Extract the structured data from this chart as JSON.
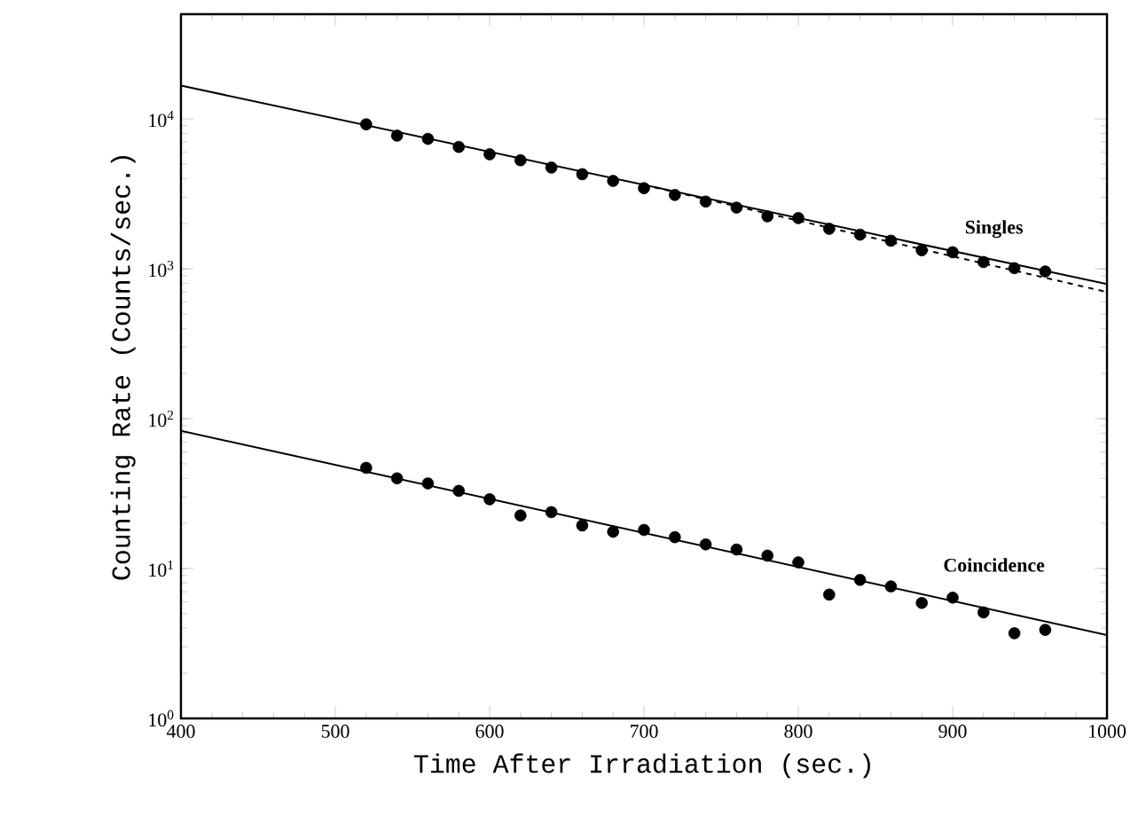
{
  "chart_data": {
    "type": "scatter",
    "xlabel": "Time After Irradiation (sec.)",
    "ylabel": "Counting Rate (Counts/sec.)",
    "log": "y",
    "xlim": [
      400,
      1000
    ],
    "ylim": [
      1,
      50000
    ],
    "xticks": [
      400,
      500,
      600,
      700,
      800,
      900,
      1000
    ],
    "yticks": [
      {
        "value": 1,
        "label": "10$^{0}$"
      },
      {
        "value": 10,
        "label": "10$^{1}$"
      },
      {
        "value": 100,
        "label": "10$^{2}$"
      },
      {
        "value": 1000,
        "label": "10$^{3}$"
      },
      {
        "value": 10000,
        "label": "10$^{4}$"
      }
    ],
    "grid": false,
    "marker": "circle",
    "series": [
      {
        "color": "#000000",
        "x": [
          520,
          540,
          560,
          580,
          600,
          620,
          640,
          660,
          680,
          700,
          720,
          740,
          760,
          780,
          800,
          820,
          840,
          860,
          880,
          900,
          920,
          940,
          960
        ],
        "values": [
          9200,
          7740,
          7360,
          6500,
          5810,
          5300,
          4740,
          4280,
          3860,
          3450,
          3110,
          2810,
          2560,
          2240,
          2180,
          1850,
          1690,
          1540,
          1330,
          1290,
          1110,
          1010,
          960
        ]
      },
      {
        "type": "line",
        "marker": "none",
        "line_style": "solid",
        "color": "#000000",
        "x": [
          400,
          1000
        ],
        "values": [
          16700,
          790
        ]
      },
      {
        "type": "line",
        "marker": "none",
        "line_style": "dashed",
        "color": "#000000",
        "x": [
          700,
          1000
        ],
        "values": [
          3630,
          700
        ]
      },
      {
        "color": "#000000",
        "x": [
          520,
          540,
          560,
          580,
          600,
          620,
          640,
          660,
          680,
          700,
          720,
          740,
          760,
          780,
          800,
          820,
          840,
          860,
          880,
          900,
          920,
          940,
          960
        ],
        "values": [
          47,
          40,
          37,
          33,
          29,
          22.6,
          23.8,
          19.4,
          17.6,
          18.1,
          16.2,
          14.5,
          13.4,
          12.2,
          11.0,
          6.7,
          8.4,
          7.6,
          5.9,
          6.4,
          5.1,
          3.7,
          3.9
        ]
      },
      {
        "type": "line",
        "marker": "none",
        "line_style": "solid",
        "color": "#000000",
        "x": [
          400,
          1000
        ],
        "values": [
          83,
          3.6
        ]
      }
    ],
    "annotations": [
      "Singles",
      "Coincidence"
    ]
  }
}
